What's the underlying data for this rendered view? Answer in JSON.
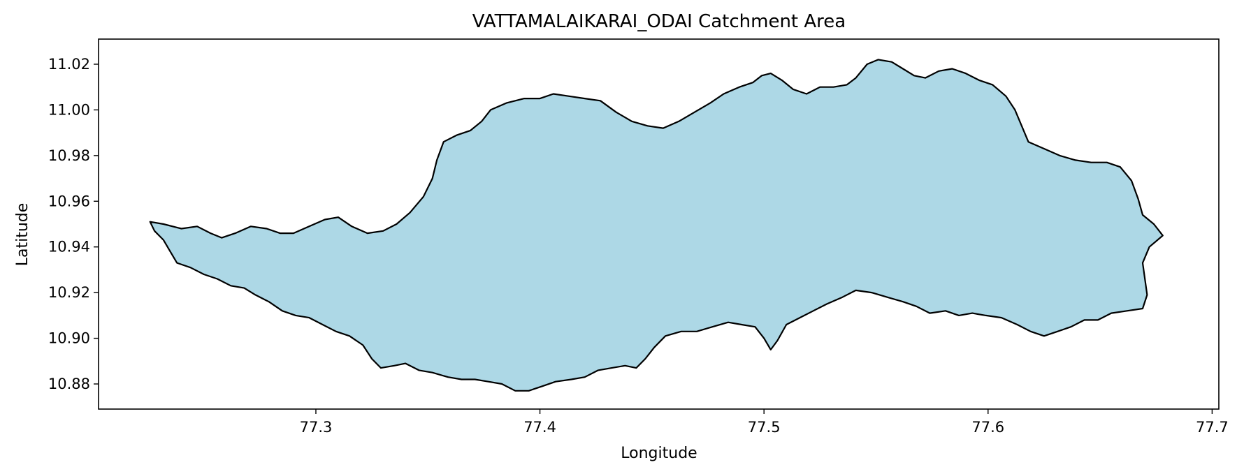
{
  "chart_data": {
    "type": "map",
    "title": "VATTAMALAIKARAI_ODAI Catchment Area",
    "xlabel": "Longitude",
    "ylabel": "Latitude",
    "xlim": [
      77.203,
      77.703
    ],
    "ylim": [
      10.869,
      11.031
    ],
    "xticks": [
      77.3,
      77.4,
      77.5,
      77.6,
      77.7
    ],
    "xtick_labels": [
      "77.3",
      "77.4",
      "77.5",
      "77.6",
      "77.7"
    ],
    "yticks": [
      10.88,
      10.9,
      10.92,
      10.94,
      10.96,
      10.98,
      11.0,
      11.02
    ],
    "ytick_labels": [
      "10.88",
      "10.90",
      "10.92",
      "10.94",
      "10.96",
      "10.98",
      "11.00",
      "11.02"
    ],
    "grid": false,
    "fill_color": "#add8e6",
    "edge_color": "#000000",
    "polygon": [
      [
        77.226,
        10.951
      ],
      [
        77.232,
        10.95
      ],
      [
        77.24,
        10.948
      ],
      [
        77.247,
        10.949
      ],
      [
        77.253,
        10.946
      ],
      [
        77.258,
        10.944
      ],
      [
        77.264,
        10.946
      ],
      [
        77.271,
        10.949
      ],
      [
        77.278,
        10.948
      ],
      [
        77.284,
        10.946
      ],
      [
        77.29,
        10.946
      ],
      [
        77.297,
        10.949
      ],
      [
        77.304,
        10.952
      ],
      [
        77.31,
        10.953
      ],
      [
        77.316,
        10.949
      ],
      [
        77.323,
        10.946
      ],
      [
        77.33,
        10.947
      ],
      [
        77.336,
        10.95
      ],
      [
        77.342,
        10.955
      ],
      [
        77.348,
        10.962
      ],
      [
        77.352,
        10.97
      ],
      [
        77.354,
        10.978
      ],
      [
        77.357,
        10.986
      ],
      [
        77.363,
        10.989
      ],
      [
        77.369,
        10.991
      ],
      [
        77.374,
        10.995
      ],
      [
        77.378,
        11.0
      ],
      [
        77.385,
        11.003
      ],
      [
        77.393,
        11.005
      ],
      [
        77.4,
        11.005
      ],
      [
        77.406,
        11.007
      ],
      [
        77.413,
        11.006
      ],
      [
        77.42,
        11.005
      ],
      [
        77.427,
        11.004
      ],
      [
        77.434,
        10.999
      ],
      [
        77.441,
        10.995
      ],
      [
        77.448,
        10.993
      ],
      [
        77.455,
        10.992
      ],
      [
        77.462,
        10.995
      ],
      [
        77.469,
        10.999
      ],
      [
        77.476,
        11.003
      ],
      [
        77.482,
        11.007
      ],
      [
        77.489,
        11.01
      ],
      [
        77.495,
        11.012
      ],
      [
        77.499,
        11.015
      ],
      [
        77.503,
        11.016
      ],
      [
        77.508,
        11.013
      ],
      [
        77.513,
        11.009
      ],
      [
        77.519,
        11.007
      ],
      [
        77.525,
        11.01
      ],
      [
        77.531,
        11.01
      ],
      [
        77.537,
        11.011
      ],
      [
        77.541,
        11.014
      ],
      [
        77.546,
        11.02
      ],
      [
        77.551,
        11.022
      ],
      [
        77.557,
        11.021
      ],
      [
        77.562,
        11.018
      ],
      [
        77.567,
        11.015
      ],
      [
        77.572,
        11.014
      ],
      [
        77.578,
        11.017
      ],
      [
        77.584,
        11.018
      ],
      [
        77.59,
        11.016
      ],
      [
        77.596,
        11.013
      ],
      [
        77.602,
        11.011
      ],
      [
        77.608,
        11.006
      ],
      [
        77.612,
        11.0
      ],
      [
        77.615,
        10.993
      ],
      [
        77.618,
        10.986
      ],
      [
        77.625,
        10.983
      ],
      [
        77.632,
        10.98
      ],
      [
        77.639,
        10.978
      ],
      [
        77.646,
        10.977
      ],
      [
        77.653,
        10.977
      ],
      [
        77.659,
        10.975
      ],
      [
        77.664,
        10.969
      ],
      [
        77.667,
        10.961
      ],
      [
        77.669,
        10.954
      ],
      [
        77.674,
        10.95
      ],
      [
        77.678,
        10.945
      ],
      [
        77.672,
        10.94
      ],
      [
        77.669,
        10.933
      ],
      [
        77.67,
        10.926
      ],
      [
        77.671,
        10.919
      ],
      [
        77.669,
        10.913
      ],
      [
        77.662,
        10.912
      ],
      [
        77.655,
        10.911
      ],
      [
        77.649,
        10.908
      ],
      [
        77.643,
        10.908
      ],
      [
        77.637,
        10.905
      ],
      [
        77.631,
        10.903
      ],
      [
        77.625,
        10.901
      ],
      [
        77.619,
        10.903
      ],
      [
        77.613,
        10.906
      ],
      [
        77.606,
        10.909
      ],
      [
        77.599,
        10.91
      ],
      [
        77.593,
        10.911
      ],
      [
        77.587,
        10.91
      ],
      [
        77.581,
        10.912
      ],
      [
        77.574,
        10.911
      ],
      [
        77.568,
        10.914
      ],
      [
        77.562,
        10.916
      ],
      [
        77.555,
        10.918
      ],
      [
        77.548,
        10.92
      ],
      [
        77.541,
        10.921
      ],
      [
        77.535,
        10.918
      ],
      [
        77.528,
        10.915
      ],
      [
        77.522,
        10.912
      ],
      [
        77.516,
        10.909
      ],
      [
        77.51,
        10.906
      ],
      [
        77.506,
        10.899
      ],
      [
        77.503,
        10.895
      ],
      [
        77.5,
        10.9
      ],
      [
        77.496,
        10.905
      ],
      [
        77.49,
        10.906
      ],
      [
        77.484,
        10.907
      ],
      [
        77.477,
        10.905
      ],
      [
        77.47,
        10.903
      ],
      [
        77.463,
        10.903
      ],
      [
        77.456,
        10.901
      ],
      [
        77.451,
        10.896
      ],
      [
        77.447,
        10.891
      ],
      [
        77.443,
        10.887
      ],
      [
        77.438,
        10.888
      ],
      [
        77.432,
        10.887
      ],
      [
        77.426,
        10.886
      ],
      [
        77.42,
        10.883
      ],
      [
        77.414,
        10.882
      ],
      [
        77.407,
        10.881
      ],
      [
        77.401,
        10.879
      ],
      [
        77.395,
        10.877
      ],
      [
        77.389,
        10.877
      ],
      [
        77.383,
        10.88
      ],
      [
        77.377,
        10.881
      ],
      [
        77.371,
        10.882
      ],
      [
        77.365,
        10.882
      ],
      [
        77.359,
        10.883
      ],
      [
        77.352,
        10.885
      ],
      [
        77.346,
        10.886
      ],
      [
        77.34,
        10.889
      ],
      [
        77.335,
        10.888
      ],
      [
        77.329,
        10.887
      ],
      [
        77.325,
        10.891
      ],
      [
        77.321,
        10.897
      ],
      [
        77.315,
        10.901
      ],
      [
        77.309,
        10.903
      ],
      [
        77.303,
        10.906
      ],
      [
        77.297,
        10.909
      ],
      [
        77.291,
        10.91
      ],
      [
        77.285,
        10.912
      ],
      [
        77.279,
        10.916
      ],
      [
        77.273,
        10.919
      ],
      [
        77.268,
        10.922
      ],
      [
        77.262,
        10.923
      ],
      [
        77.256,
        10.926
      ],
      [
        77.25,
        10.928
      ],
      [
        77.244,
        10.931
      ],
      [
        77.238,
        10.933
      ],
      [
        77.235,
        10.938
      ],
      [
        77.232,
        10.943
      ],
      [
        77.228,
        10.947
      ]
    ]
  }
}
